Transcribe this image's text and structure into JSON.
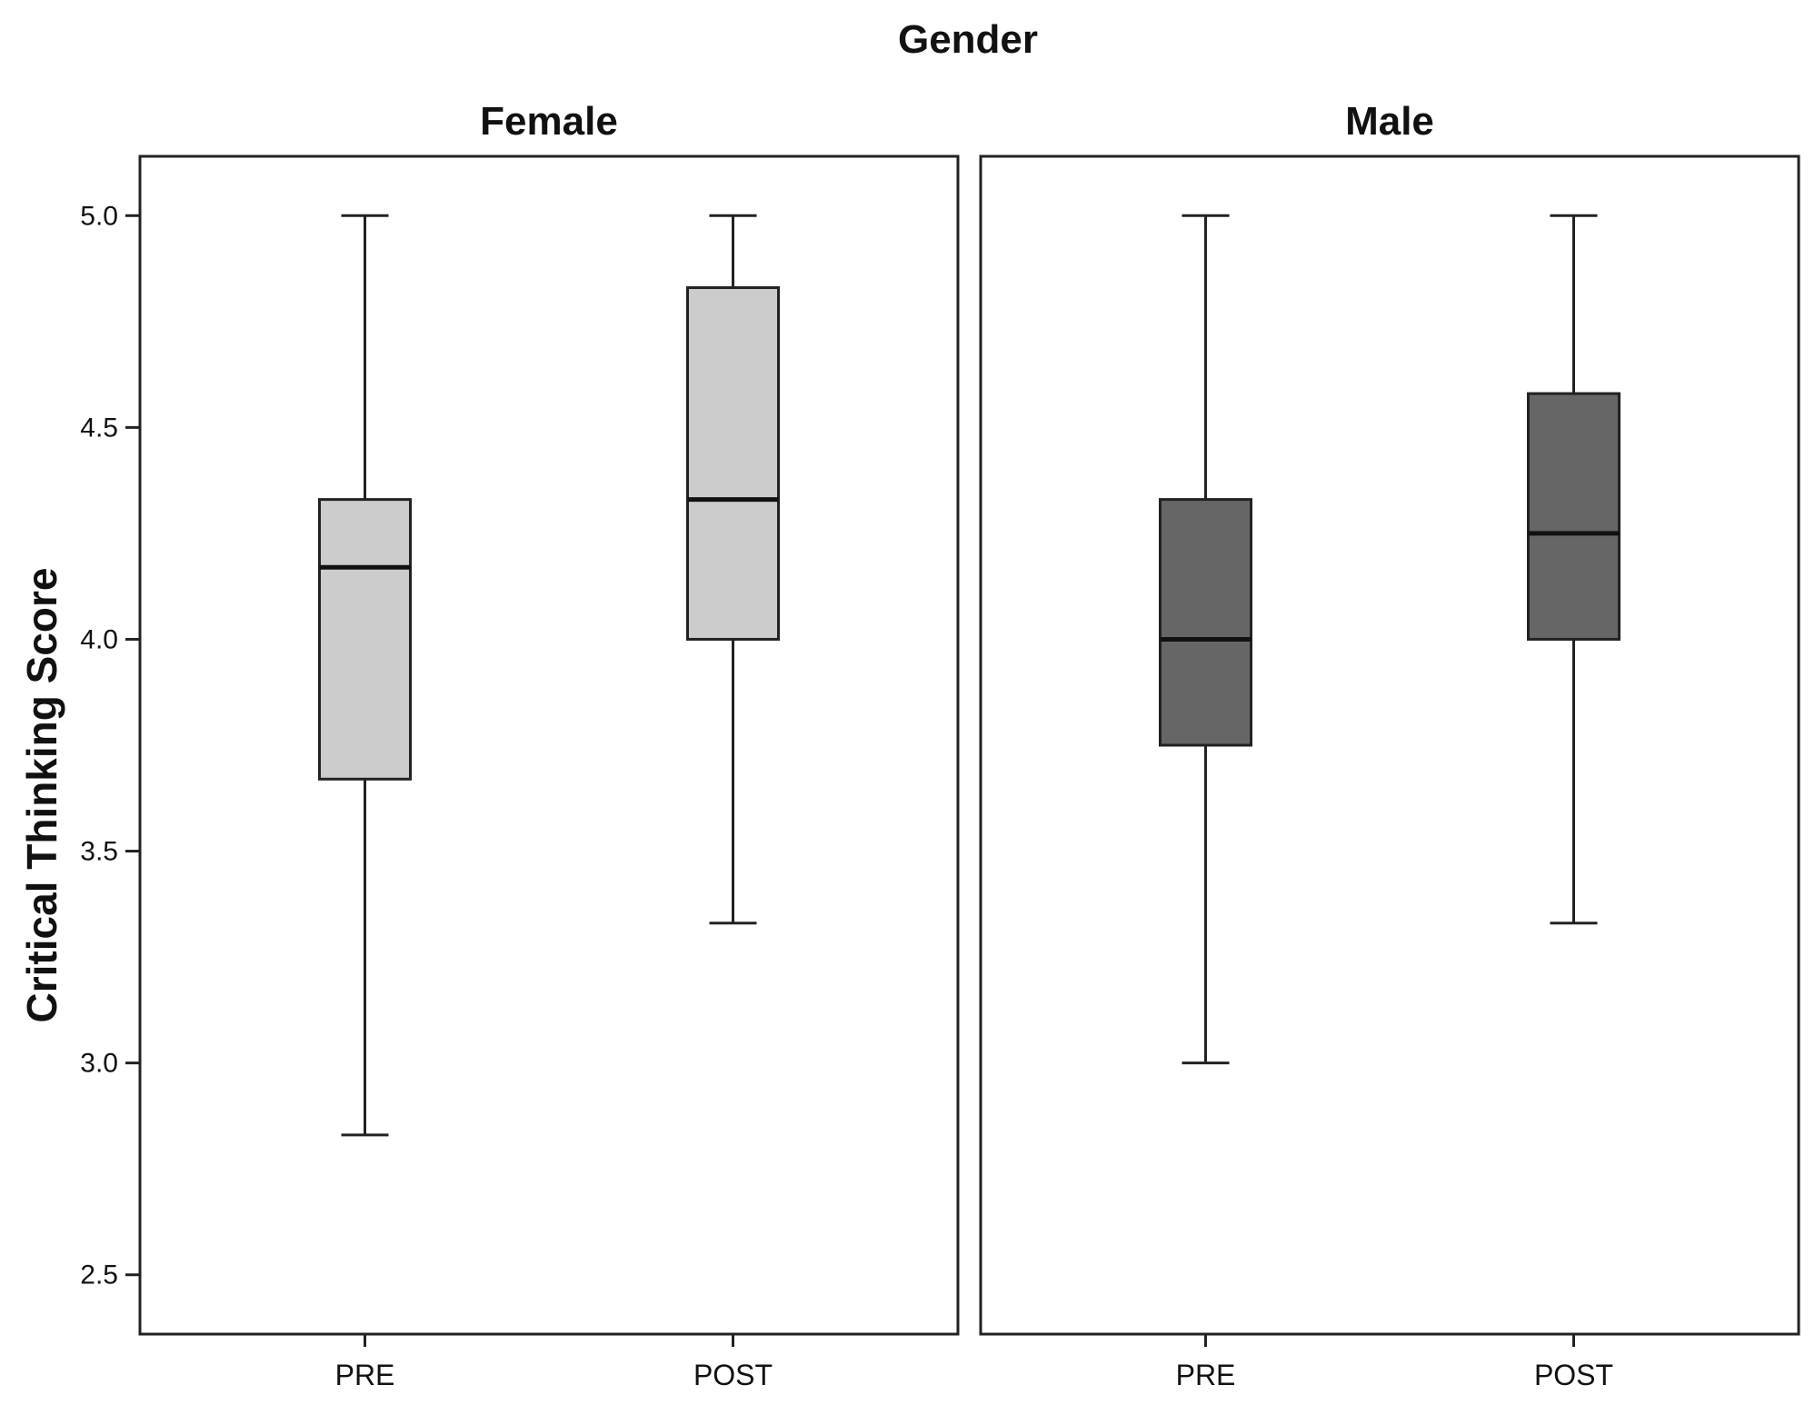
{
  "chart_data": {
    "type": "boxplot",
    "title": "Gender",
    "ylabel": "Critical Thinking Score",
    "xlabel": "",
    "ylim": [
      2.36,
      5.14
    ],
    "yticks": [
      2.5,
      3.0,
      3.5,
      4.0,
      4.5,
      5.0
    ],
    "ytick_labels": [
      "2.5",
      "3.0",
      "3.5",
      "4.0",
      "4.5",
      "5.0"
    ],
    "categories": [
      "PRE",
      "POST"
    ],
    "panels": [
      {
        "name": "Female",
        "fill": "#cccccc",
        "boxes": [
          {
            "category": "PRE",
            "min": 2.83,
            "q1": 3.67,
            "median": 4.17,
            "q3": 4.33,
            "max": 5.0
          },
          {
            "category": "POST",
            "min": 3.33,
            "q1": 4.0,
            "median": 4.33,
            "q3": 4.83,
            "max": 5.0
          }
        ]
      },
      {
        "name": "Male",
        "fill": "#666666",
        "boxes": [
          {
            "category": "PRE",
            "min": 3.0,
            "q1": 3.75,
            "median": 4.0,
            "q3": 4.33,
            "max": 5.0
          },
          {
            "category": "POST",
            "min": 3.33,
            "q1": 4.0,
            "median": 4.25,
            "q3": 4.58,
            "max": 5.0
          }
        ]
      }
    ],
    "grid": false,
    "colors": {
      "stroke": "#222222",
      "text": "#111111",
      "background": "#ffffff"
    }
  }
}
